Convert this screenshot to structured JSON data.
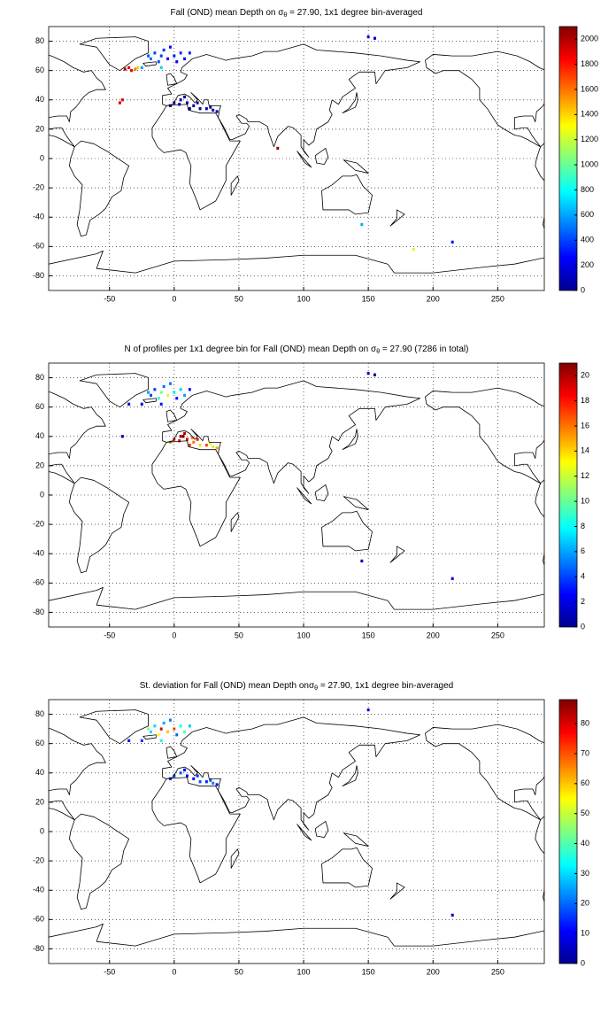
{
  "chart_data": [
    {
      "type": "heatmap",
      "title": [
        "Fall (OND) mean Depth on σ",
        "θ",
        " = 27.90, 1x1 degree bin-averaged"
      ],
      "xlim": [
        -97,
        286
      ],
      "ylim": [
        -90,
        90
      ],
      "xticks": [
        -50,
        0,
        50,
        100,
        150,
        200,
        250
      ],
      "yticks": [
        -80,
        -60,
        -40,
        -20,
        0,
        20,
        40,
        60,
        80
      ],
      "grid": true,
      "colormap": "jet",
      "clim": [
        0,
        2100
      ],
      "cticks": [
        0,
        200,
        400,
        600,
        800,
        1000,
        1200,
        1400,
        1600,
        1800,
        2000
      ],
      "bins": {
        "lon": [
          -20,
          -15,
          -10,
          -8,
          -5,
          0,
          5,
          -12,
          2,
          8,
          -18,
          -3,
          12,
          -25,
          -10,
          -35,
          -33,
          -38,
          -30,
          -28,
          0,
          5,
          10,
          15,
          20,
          25,
          30,
          -3,
          8,
          18,
          28,
          33,
          4,
          12,
          -40,
          -42,
          80,
          150,
          155,
          185,
          215,
          145
        ],
        "lat": [
          70,
          72,
          70,
          74,
          68,
          70,
          72,
          66,
          66,
          68,
          68,
          76,
          72,
          62,
          62,
          62,
          60,
          61,
          61,
          62,
          38,
          40,
          38,
          36,
          34,
          34,
          33,
          36,
          42,
          38,
          35,
          32,
          37,
          34,
          40,
          38,
          7,
          83,
          82,
          -62,
          -57,
          -45
        ],
        "values": [
          450,
          400,
          380,
          350,
          300,
          320,
          360,
          420,
          250,
          300,
          500,
          280,
          330,
          600,
          700,
          1900,
          1850,
          2000,
          1600,
          1400,
          100,
          80,
          60,
          50,
          70,
          90,
          80,
          120,
          90,
          60,
          100,
          70,
          110,
          60,
          1850,
          1900,
          2050,
          200,
          150,
          1200,
          300,
          600
        ]
      }
    },
    {
      "type": "heatmap",
      "title": [
        "N of profiles per 1x1 degree bin for Fall (OND) mean Depth on σ",
        "θ",
        " = 27.90 (7286 in total)"
      ],
      "xlim": [
        -97,
        286
      ],
      "ylim": [
        -90,
        90
      ],
      "xticks": [
        -50,
        0,
        50,
        100,
        150,
        200,
        250
      ],
      "yticks": [
        -80,
        -60,
        -40,
        -20,
        0,
        20,
        40,
        60,
        80
      ],
      "grid": true,
      "colormap": "jet",
      "clim": [
        0,
        21
      ],
      "cticks": [
        0,
        2,
        4,
        6,
        8,
        10,
        12,
        14,
        16,
        18,
        20
      ],
      "bins": {
        "lon": [
          -20,
          -15,
          -10,
          -8,
          -5,
          0,
          5,
          -12,
          2,
          8,
          -18,
          -3,
          12,
          -25,
          -10,
          -35,
          0,
          5,
          10,
          15,
          20,
          25,
          30,
          -3,
          8,
          18,
          28,
          33,
          4,
          12,
          7,
          14,
          -40,
          150,
          155,
          215,
          145
        ],
        "lat": [
          70,
          72,
          70,
          74,
          68,
          70,
          72,
          66,
          66,
          68,
          68,
          76,
          72,
          62,
          62,
          62,
          38,
          40,
          38,
          36,
          34,
          34,
          33,
          36,
          42,
          38,
          35,
          32,
          37,
          34,
          40,
          39,
          40,
          83,
          82,
          -57,
          -45
        ],
        "values": [
          6,
          4,
          10,
          5,
          12,
          8,
          7,
          9,
          3,
          6,
          4,
          5,
          3,
          2,
          3,
          2,
          18,
          20,
          19,
          16,
          14,
          17,
          12,
          15,
          20,
          18,
          13,
          15,
          19,
          17,
          21,
          16,
          1,
          2,
          1,
          2,
          1
        ]
      }
    },
    {
      "type": "heatmap",
      "title": [
        "St. deviation for Fall (OND) mean Depth on",
        "σ",
        "θ",
        " = 27.90, 1x1 degree bin-averaged"
      ],
      "xlim": [
        -97,
        286
      ],
      "ylim": [
        -90,
        90
      ],
      "xticks": [
        -50,
        0,
        50,
        100,
        150,
        200,
        250
      ],
      "yticks": [
        -80,
        -60,
        -40,
        -20,
        0,
        20,
        40,
        60,
        80
      ],
      "grid": true,
      "colormap": "jet",
      "clim": [
        0,
        88
      ],
      "cticks": [
        0,
        10,
        20,
        30,
        40,
        50,
        60,
        70,
        80
      ],
      "bins": {
        "lon": [
          -20,
          -15,
          -10,
          -8,
          -5,
          0,
          5,
          -12,
          2,
          8,
          -18,
          -3,
          12,
          -25,
          -10,
          -35,
          0,
          5,
          10,
          15,
          20,
          25,
          30,
          -3,
          8,
          18,
          28,
          33,
          150,
          215
        ],
        "lat": [
          70,
          72,
          70,
          74,
          68,
          70,
          72,
          66,
          66,
          68,
          68,
          76,
          72,
          62,
          62,
          62,
          38,
          40,
          38,
          36,
          34,
          34,
          33,
          36,
          42,
          38,
          35,
          32,
          83,
          -57
        ],
        "values": [
          45,
          30,
          80,
          25,
          60,
          70,
          35,
          55,
          20,
          40,
          30,
          22,
          28,
          15,
          35,
          12,
          15,
          20,
          12,
          10,
          18,
          14,
          22,
          16,
          12,
          15,
          18,
          10,
          12,
          5
        ]
      }
    }
  ]
}
